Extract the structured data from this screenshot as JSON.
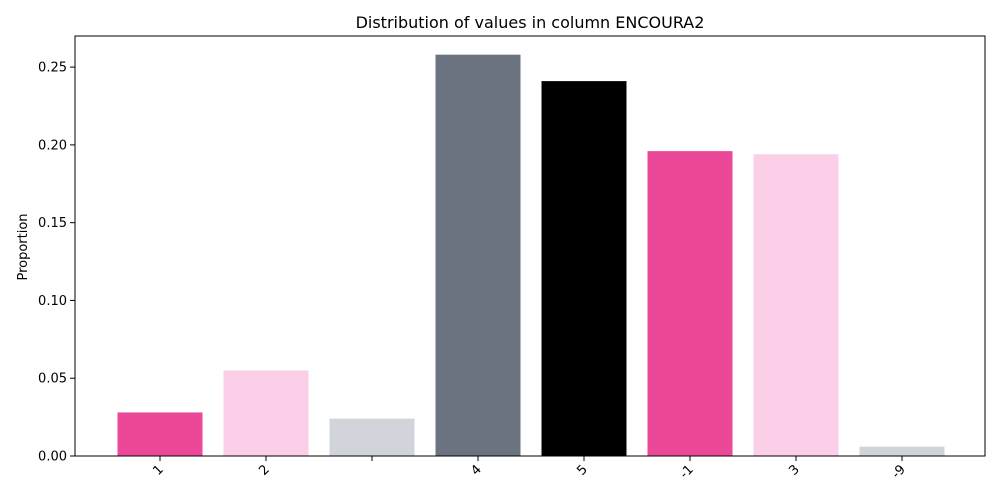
{
  "chart_data": {
    "type": "bar",
    "title": "Distribution of values in column ENCOURA2",
    "xlabel": "",
    "ylabel": "Proportion",
    "categories": [
      "1",
      "2",
      "",
      "4",
      "5",
      "-1",
      "3",
      "-9"
    ],
    "values": [
      0.028,
      0.055,
      0.024,
      0.258,
      0.241,
      0.196,
      0.194,
      0.006
    ],
    "colors": [
      "#ec4899",
      "#fbcfe8",
      "#d1d5db",
      "#6b7280",
      "#000000",
      "#ec4899",
      "#fbcfe8",
      "#d1d5db"
    ],
    "ylim": [
      0,
      0.27
    ],
    "yticks": [
      0.0,
      0.05,
      0.1,
      0.15,
      0.2,
      0.25
    ],
    "ytick_labels": [
      "0.00",
      "0.05",
      "0.10",
      "0.15",
      "0.20",
      "0.25"
    ],
    "grid": false,
    "legend": "none"
  }
}
